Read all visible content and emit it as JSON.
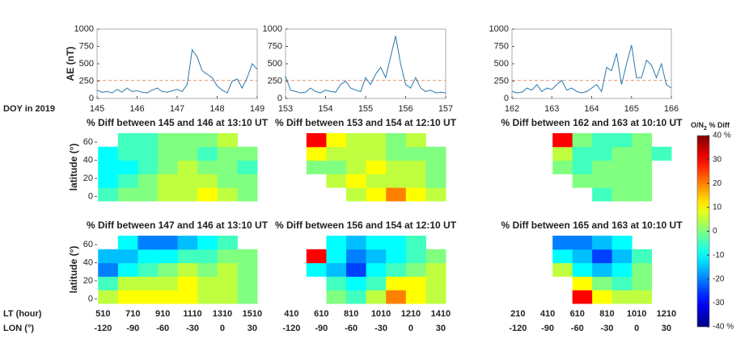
{
  "chart_data": [
    {
      "type": "line",
      "xlabel": "DOY in 2019",
      "ylabel": "AE (nT)",
      "color": "#2a78ad",
      "threshold": 260,
      "threshold_color": "#e8927a",
      "xlim": [
        145,
        149
      ],
      "xticks": [
        145,
        146,
        147,
        148,
        149
      ],
      "ylim": [
        0,
        1000
      ],
      "yticks": [
        0,
        250,
        500,
        750,
        1000
      ],
      "x": [
        145,
        145.125,
        145.25,
        145.375,
        145.5,
        145.625,
        145.75,
        145.875,
        146,
        146.125,
        146.25,
        146.375,
        146.5,
        146.625,
        146.75,
        146.875,
        147,
        147.125,
        147.25,
        147.375,
        147.5,
        147.625,
        147.75,
        147.875,
        148,
        148.125,
        148.25,
        148.375,
        148.5,
        148.625,
        148.75,
        148.875,
        149
      ],
      "values": [
        120,
        90,
        100,
        80,
        130,
        90,
        150,
        100,
        110,
        90,
        80,
        120,
        150,
        100,
        90,
        110,
        130,
        100,
        200,
        700,
        600,
        400,
        350,
        300,
        180,
        120,
        80,
        250,
        280,
        150,
        300,
        500,
        420
      ]
    },
    {
      "type": "line",
      "color": "#2a78ad",
      "threshold": 260,
      "threshold_color": "#e8927a",
      "xlim": [
        153,
        157
      ],
      "xticks": [
        153,
        154,
        155,
        156,
        157
      ],
      "ylim": [
        0,
        1000
      ],
      "yticks": [
        0,
        250,
        500,
        750,
        1000
      ],
      "x": [
        153,
        153.125,
        153.25,
        153.375,
        153.5,
        153.625,
        153.75,
        153.875,
        154,
        154.125,
        154.25,
        154.375,
        154.5,
        154.625,
        154.75,
        154.875,
        155,
        155.125,
        155.25,
        155.375,
        155.5,
        155.625,
        155.75,
        155.875,
        156,
        156.125,
        156.25,
        156.375,
        156.5,
        156.625,
        156.75,
        156.875,
        157
      ],
      "values": [
        320,
        120,
        100,
        80,
        90,
        150,
        100,
        80,
        120,
        100,
        90,
        200,
        250,
        150,
        120,
        100,
        300,
        200,
        350,
        450,
        300,
        600,
        900,
        500,
        200,
        150,
        300,
        150,
        100,
        120,
        80,
        90,
        80
      ]
    },
    {
      "type": "line",
      "color": "#2a78ad",
      "threshold": 260,
      "threshold_color": "#e8927a",
      "xlim": [
        162,
        166
      ],
      "xticks": [
        162,
        163,
        164,
        165,
        166
      ],
      "ylim": [
        0,
        1000
      ],
      "yticks": [
        0,
        250,
        500,
        750,
        1000
      ],
      "x": [
        162,
        162.125,
        162.25,
        162.375,
        162.5,
        162.625,
        162.75,
        162.875,
        163,
        163.125,
        163.25,
        163.375,
        163.5,
        163.625,
        163.75,
        163.875,
        164,
        164.125,
        164.25,
        164.375,
        164.5,
        164.625,
        164.75,
        164.875,
        165,
        165.125,
        165.25,
        165.375,
        165.5,
        165.625,
        165.75,
        165.875,
        166
      ],
      "values": [
        100,
        80,
        90,
        150,
        120,
        200,
        100,
        150,
        130,
        200,
        260,
        120,
        150,
        100,
        80,
        100,
        150,
        200,
        100,
        450,
        400,
        650,
        200,
        500,
        770,
        300,
        300,
        550,
        480,
        300,
        500,
        200,
        150
      ]
    },
    {
      "type": "heatmap",
      "title": "% Diff between 145 and 146 at 13:10 UT",
      "ylabel": "latitude (°)",
      "xlim": [
        -126,
        35
      ],
      "ylim": [
        -5,
        70
      ],
      "yticks": [
        0,
        20,
        40,
        60
      ],
      "lon": [
        -115,
        -95,
        -75,
        -55,
        -35,
        -15,
        5,
        25
      ],
      "lat": [
        2.5,
        17.5,
        32.5,
        47.5,
        62.5
      ],
      "values": [
        [
          -5,
          0,
          0,
          5,
          5,
          10,
          5,
          0
        ],
        [
          -10,
          -5,
          0,
          5,
          5,
          5,
          0,
          0
        ],
        [
          -10,
          -10,
          -5,
          0,
          5,
          0,
          0,
          -5
        ],
        [
          -10,
          -5,
          -5,
          0,
          0,
          -5,
          0,
          0
        ],
        [
          null,
          -5,
          -5,
          0,
          0,
          0,
          5,
          null
        ]
      ]
    },
    {
      "type": "heatmap",
      "title": "% Diff between 153 and 154 at 12:10 UT",
      "xlim": [
        -126,
        35
      ],
      "ylim": [
        -5,
        70
      ],
      "lon": [
        -115,
        -95,
        -75,
        -55,
        -35,
        -15,
        5,
        25
      ],
      "lat": [
        2.5,
        17.5,
        32.5,
        47.5,
        62.5
      ],
      "values": [
        [
          null,
          null,
          null,
          5,
          10,
          20,
          10,
          5
        ],
        [
          null,
          null,
          5,
          10,
          5,
          5,
          5,
          0
        ],
        [
          null,
          0,
          0,
          5,
          10,
          5,
          5,
          0
        ],
        [
          null,
          10,
          5,
          5,
          5,
          0,
          0,
          0
        ],
        [
          null,
          30,
          10,
          5,
          5,
          0,
          5,
          null
        ]
      ]
    },
    {
      "type": "heatmap",
      "title": "% Diff between 162 and 163 at 10:10 UT",
      "xlim": [
        -126,
        35
      ],
      "ylim": [
        -5,
        70
      ],
      "lon": [
        -115,
        -95,
        -75,
        -55,
        -35,
        -15,
        5,
        25
      ],
      "lat": [
        2.5,
        17.5,
        32.5,
        47.5,
        62.5
      ],
      "values": [
        [
          null,
          null,
          null,
          null,
          -5,
          0,
          0,
          null
        ],
        [
          null,
          null,
          null,
          0,
          0,
          0,
          0,
          null
        ],
        [
          null,
          null,
          0,
          -5,
          0,
          0,
          0,
          null
        ],
        [
          null,
          null,
          5,
          -5,
          -5,
          0,
          0,
          -5
        ],
        [
          null,
          null,
          30,
          0,
          -5,
          -5,
          0,
          null
        ]
      ]
    },
    {
      "type": "heatmap",
      "title": "% Diff between 147 and 146 at 13:10 UT",
      "ylabel": "latitude (°)",
      "xlabel": "LON (°)",
      "ltlabel": "LT (hour)",
      "xlim": [
        -126,
        35
      ],
      "ylim": [
        -5,
        70
      ],
      "yticks": [
        0,
        20,
        40,
        60
      ],
      "xticks": [
        -120,
        -90,
        -60,
        -30,
        0,
        30
      ],
      "lt_ticks": [
        "510",
        "710",
        "910",
        "1110",
        "1310",
        "1510"
      ],
      "lon": [
        -115,
        -95,
        -75,
        -55,
        -35,
        -15,
        5,
        25
      ],
      "lat": [
        2.5,
        17.5,
        32.5,
        47.5,
        62.5
      ],
      "values": [
        [
          5,
          10,
          10,
          10,
          10,
          5,
          5,
          0
        ],
        [
          -5,
          5,
          5,
          5,
          10,
          5,
          5,
          0
        ],
        [
          -20,
          -10,
          -5,
          0,
          5,
          0,
          5,
          0
        ],
        [
          -15,
          -15,
          -10,
          -10,
          -5,
          -5,
          0,
          0
        ],
        [
          null,
          -10,
          -20,
          -20,
          -15,
          -10,
          -5,
          null
        ]
      ]
    },
    {
      "type": "heatmap",
      "title": "% Diff between 156 and 154 at 12:10 UT",
      "xlim": [
        -126,
        35
      ],
      "ylim": [
        -5,
        70
      ],
      "xticks": [
        -120,
        -90,
        -60,
        -30,
        0,
        30
      ],
      "lt_ticks": [
        "410",
        "610",
        "810",
        "1010",
        "1210",
        "1410"
      ],
      "lon": [
        -115,
        -95,
        -75,
        -55,
        -35,
        -15,
        5,
        25
      ],
      "lat": [
        2.5,
        17.5,
        32.5,
        47.5,
        62.5
      ],
      "values": [
        [
          null,
          null,
          0,
          -5,
          5,
          20,
          10,
          5
        ],
        [
          null,
          null,
          -5,
          -10,
          -5,
          10,
          10,
          5
        ],
        [
          null,
          -10,
          -15,
          -25,
          -10,
          -5,
          0,
          5
        ],
        [
          null,
          30,
          -10,
          -20,
          -15,
          -10,
          -5,
          0
        ],
        [
          null,
          null,
          -10,
          -15,
          -10,
          -10,
          -5,
          null
        ]
      ]
    },
    {
      "type": "heatmap",
      "title": "% Diff between 165 and 163 at 10:10 UT",
      "xlim": [
        -126,
        35
      ],
      "ylim": [
        -5,
        70
      ],
      "xticks": [
        -120,
        -90,
        -60,
        -30,
        0,
        30
      ],
      "lt_ticks": [
        "210",
        "410",
        "610",
        "810",
        "1010",
        "1210"
      ],
      "lon": [
        -115,
        -95,
        -75,
        -55,
        -35,
        -15,
        5,
        25
      ],
      "lat": [
        2.5,
        17.5,
        32.5,
        47.5,
        62.5
      ],
      "values": [
        [
          null,
          null,
          null,
          30,
          10,
          5,
          5,
          null
        ],
        [
          null,
          null,
          null,
          10,
          0,
          -5,
          0,
          null
        ],
        [
          null,
          null,
          5,
          -10,
          -15,
          -10,
          0,
          null
        ],
        [
          null,
          null,
          -10,
          -15,
          -25,
          -15,
          -5,
          null
        ],
        [
          null,
          null,
          -20,
          -20,
          -15,
          -10,
          null,
          null
        ]
      ]
    }
  ],
  "colorbar": {
    "title": [
      "O/N",
      "2",
      " % Diff"
    ],
    "colormap": "jet",
    "clim": [
      -40,
      40
    ],
    "ticks": [
      {
        "value": 40,
        "label": "40 %"
      },
      30,
      20,
      10,
      0,
      -10,
      -20,
      -30,
      {
        "value": -40,
        "label": "-40 %"
      }
    ]
  }
}
